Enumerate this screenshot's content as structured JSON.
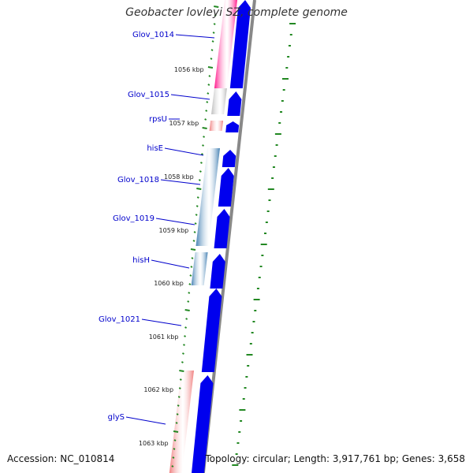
{
  "title": "Geobacter lovleyi SZ, complete genome",
  "footer": {
    "accession": "Accession: NC_010814",
    "stats": "Topology: circular; Length: 3,917,761 bp; Genes: 3,658"
  },
  "colors": {
    "cds_blue": "#0000ee",
    "pink": "#ff1a8c",
    "gray": "#bdbdbd",
    "salmon": "#f08080",
    "steelblue": "#4682b4",
    "backbone": "#888888",
    "gc_ticks": "#228822",
    "label_blue": "#0000cc"
  },
  "gene_labels": [
    "Glov_1014",
    "Glov_1015",
    "rpsU",
    "hisE",
    "Glov_1018",
    "Glov_1019",
    "hisH",
    "Glov_1021",
    "glyS"
  ],
  "kbp_labels": [
    "1056 kbp",
    "1057 kbp",
    "1058 kbp",
    "1059 kbp",
    "1060 kbp",
    "1061 kbp",
    "1062 kbp",
    "1063 kbp"
  ]
}
